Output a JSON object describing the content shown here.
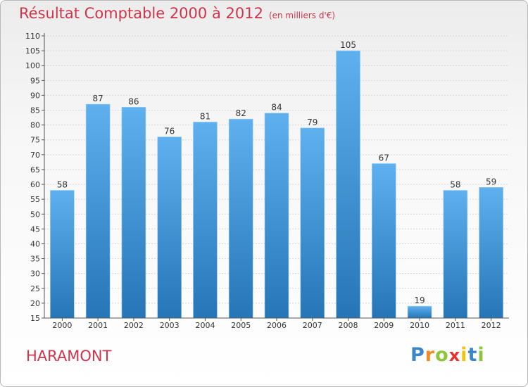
{
  "header": {
    "title": "Résultat Comptable 2000 à 2012",
    "subtitle": "(en milliers d'€)"
  },
  "footer": {
    "town": "HARAMONT",
    "logo_letters": [
      {
        "ch": "P",
        "color": "#3a86c8"
      },
      {
        "ch": "r",
        "color": "#f08a24"
      },
      {
        "ch": "o",
        "color": "#8cc63f"
      },
      {
        "ch": "x",
        "color": "#e2342d"
      },
      {
        "ch": "i",
        "color": "#f4c20d"
      },
      {
        "ch": "t",
        "color": "#3a86c8"
      },
      {
        "ch": "i",
        "color": "#8cc63f"
      }
    ]
  },
  "colors": {
    "title": "#d0344a",
    "bar_top": "#5eb0ee",
    "bar_bottom": "#2676b7",
    "grid": "#d6d6d6",
    "axis": "#555555",
    "text": "#333333"
  },
  "chart_data": {
    "type": "bar",
    "title": "Résultat Comptable 2000 à 2012",
    "subtitle": "(en milliers d'€)",
    "xlabel": "",
    "ylabel": "",
    "categories": [
      "2000",
      "2001",
      "2002",
      "2003",
      "2004",
      "2005",
      "2006",
      "2007",
      "2008",
      "2009",
      "2010",
      "2011",
      "2012"
    ],
    "values": [
      58,
      87,
      86,
      76,
      81,
      82,
      84,
      79,
      105,
      67,
      19,
      58,
      59
    ],
    "ylim": [
      15,
      110
    ],
    "ytick_step": 5,
    "grid": true,
    "data_labels": true
  }
}
